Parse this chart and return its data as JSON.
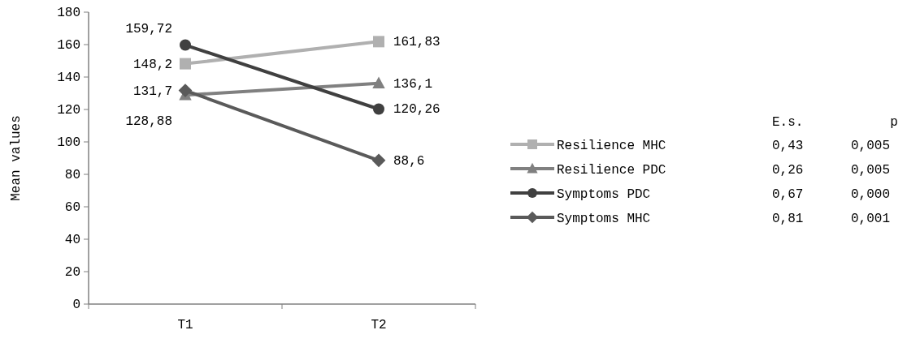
{
  "chart_data": {
    "type": "line",
    "ylabel": "Mean values",
    "categories": [
      "T1",
      "T2"
    ],
    "ylim": [
      0,
      180
    ],
    "yticks": [
      0,
      20,
      40,
      60,
      80,
      100,
      120,
      140,
      160,
      180
    ],
    "legend": "right",
    "series": [
      {
        "name": "Resilience MHC",
        "color": "#b0b0b0",
        "marker": "square",
        "values": [
          148.2,
          161.83
        ],
        "value_labels": [
          "148,2",
          "161,83"
        ]
      },
      {
        "name": "Resilience PDC",
        "color": "#808080",
        "marker": "triangle",
        "values": [
          128.88,
          136.1
        ],
        "value_labels": [
          "128,88",
          "136,1"
        ]
      },
      {
        "name": "Symptoms PDC",
        "color": "#404040",
        "marker": "circle",
        "values": [
          159.72,
          120.26
        ],
        "value_labels": [
          "159,72",
          "120,26"
        ]
      },
      {
        "name": "Symptoms MHC",
        "color": "#5a5a5a",
        "marker": "diamond",
        "values": [
          131.7,
          88.6
        ],
        "value_labels": [
          "131,7",
          "88,6"
        ]
      }
    ],
    "annotations": [
      "E.s.",
      "p",
      "0,43",
      "0,005",
      "0,26",
      "0,005",
      "0,67",
      "0,000",
      "0,81",
      "0,001"
    ]
  }
}
